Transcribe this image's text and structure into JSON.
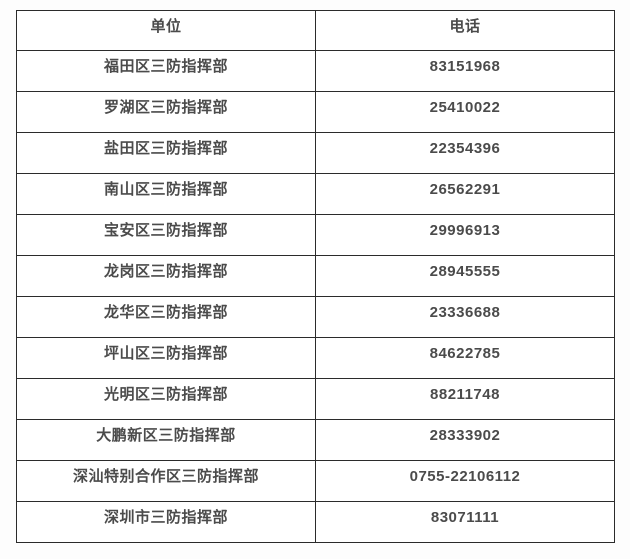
{
  "page": {
    "background": "#fdfdfd"
  },
  "table": {
    "name": "shenzhen-flood-control-phone-directory",
    "border_color": "#2b2b2b",
    "text_color": "#4b4b4b",
    "columns": [
      {
        "key": "unit",
        "label": "单位"
      },
      {
        "key": "phone",
        "label": "电话"
      }
    ],
    "rows": [
      {
        "unit": "福田区三防指挥部",
        "phone": "83151968"
      },
      {
        "unit": "罗湖区三防指挥部",
        "phone": "25410022"
      },
      {
        "unit": "盐田区三防指挥部",
        "phone": "22354396"
      },
      {
        "unit": "南山区三防指挥部",
        "phone": "26562291"
      },
      {
        "unit": "宝安区三防指挥部",
        "phone": "29996913"
      },
      {
        "unit": "龙岗区三防指挥部",
        "phone": "28945555"
      },
      {
        "unit": "龙华区三防指挥部",
        "phone": "23336688"
      },
      {
        "unit": "坪山区三防指挥部",
        "phone": "84622785"
      },
      {
        "unit": "光明区三防指挥部",
        "phone": "88211748"
      },
      {
        "unit": "大鹏新区三防指挥部",
        "phone": "28333902"
      },
      {
        "unit": "深汕特别合作区三防指挥部",
        "phone": "0755-22106112"
      },
      {
        "unit": "深圳市三防指挥部",
        "phone": "83071111"
      }
    ]
  },
  "chart_data": {
    "type": "table",
    "title": "",
    "columns": [
      "单位",
      "电话"
    ],
    "rows": [
      [
        "福田区三防指挥部",
        "83151968"
      ],
      [
        "罗湖区三防指挥部",
        "25410022"
      ],
      [
        "盐田区三防指挥部",
        "22354396"
      ],
      [
        "南山区三防指挥部",
        "26562291"
      ],
      [
        "宝安区三防指挥部",
        "29996913"
      ],
      [
        "龙岗区三防指挥部",
        "28945555"
      ],
      [
        "龙华区三防指挥部",
        "23336688"
      ],
      [
        "坪山区三防指挥部",
        "84622785"
      ],
      [
        "光明区三防指挥部",
        "88211748"
      ],
      [
        "大鹏新区三防指挥部",
        "28333902"
      ],
      [
        "深汕特别合作区三防指挥部",
        "0755-22106112"
      ],
      [
        "深圳市三防指挥部",
        "83071111"
      ]
    ]
  }
}
